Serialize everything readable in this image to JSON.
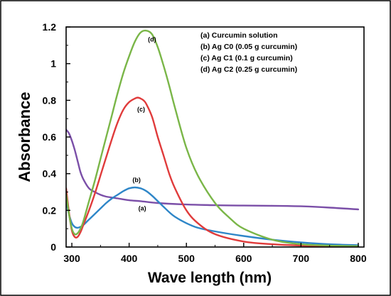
{
  "chart_data": {
    "type": "line",
    "xlabel": "Wave length (nm)",
    "ylabel": "Absorbance",
    "xlim": [
      290,
      810
    ],
    "ylim": [
      0,
      1.2
    ],
    "xticks": [
      300,
      400,
      500,
      600,
      700,
      800
    ],
    "yticks": [
      0,
      0.2,
      0.4,
      0.6,
      0.8,
      1,
      1.2
    ],
    "xtick_labels": [
      "300",
      "400",
      "500",
      "600",
      "700",
      "800"
    ],
    "ytick_labels": [
      "0",
      "0.2",
      "0.4",
      "0.6",
      "0.8",
      "1",
      "1.2"
    ],
    "grid": false,
    "legend_position": "top-right",
    "legend": [
      "(a) Curcumin solution",
      "(b) Ag C0 (0.05 g curcumin)",
      "(c) Ag C1 (0.1 g curcumin)",
      "(d) Ag C2 (0.25 g curcumin)"
    ],
    "series": [
      {
        "label": "(a)",
        "color": "#7b4fa8",
        "label_at": [
          423,
          0.2
        ],
        "x": [
          290,
          295,
          300,
          305,
          310,
          315,
          320,
          330,
          340,
          350,
          360,
          380,
          400,
          420,
          450,
          500,
          550,
          600,
          650,
          700,
          750,
          800
        ],
        "y": [
          0.64,
          0.62,
          0.58,
          0.53,
          0.47,
          0.41,
          0.37,
          0.32,
          0.3,
          0.285,
          0.275,
          0.265,
          0.255,
          0.25,
          0.24,
          0.232,
          0.228,
          0.226,
          0.225,
          0.222,
          0.215,
          0.205
        ]
      },
      {
        "label": "(b)",
        "color": "#2e86c8",
        "label_at": [
          413,
          0.355
        ],
        "x": [
          290,
          295,
          300,
          305,
          310,
          315,
          320,
          330,
          340,
          350,
          360,
          370,
          380,
          390,
          400,
          410,
          420,
          430,
          440,
          450,
          460,
          470,
          480,
          500,
          520,
          550,
          600,
          650,
          700,
          750,
          800
        ],
        "y": [
          0.25,
          0.18,
          0.13,
          0.11,
          0.105,
          0.11,
          0.12,
          0.15,
          0.18,
          0.21,
          0.24,
          0.265,
          0.285,
          0.305,
          0.32,
          0.325,
          0.32,
          0.305,
          0.28,
          0.25,
          0.22,
          0.19,
          0.165,
          0.13,
          0.105,
          0.085,
          0.06,
          0.04,
          0.025,
          0.015,
          0.01
        ]
      },
      {
        "label": "(c)",
        "color": "#e03b3b",
        "label_at": [
          421,
          0.74
        ],
        "x": [
          290,
          295,
          300,
          305,
          310,
          315,
          320,
          330,
          340,
          350,
          360,
          370,
          380,
          390,
          400,
          410,
          415,
          420,
          425,
          430,
          440,
          450,
          460,
          470,
          480,
          500,
          520,
          550,
          600,
          650,
          700,
          750,
          800
        ],
        "y": [
          0.32,
          0.19,
          0.09,
          0.055,
          0.055,
          0.08,
          0.12,
          0.2,
          0.29,
          0.39,
          0.49,
          0.59,
          0.68,
          0.75,
          0.79,
          0.81,
          0.815,
          0.81,
          0.8,
          0.78,
          0.71,
          0.6,
          0.5,
          0.4,
          0.32,
          0.2,
          0.13,
          0.07,
          0.03,
          0.015,
          0.008,
          0.005,
          0.003
        ]
      },
      {
        "label": "(d)",
        "color": "#7ab648",
        "label_at": [
          440,
          1.12
        ],
        "x": [
          290,
          295,
          300,
          305,
          310,
          315,
          320,
          330,
          340,
          350,
          360,
          370,
          380,
          390,
          400,
          410,
          420,
          430,
          440,
          450,
          460,
          470,
          480,
          500,
          520,
          550,
          575,
          600,
          650,
          700,
          750,
          800
        ],
        "y": [
          0.29,
          0.18,
          0.1,
          0.07,
          0.075,
          0.1,
          0.14,
          0.25,
          0.36,
          0.48,
          0.6,
          0.72,
          0.84,
          0.95,
          1.04,
          1.12,
          1.17,
          1.18,
          1.16,
          1.09,
          0.99,
          0.88,
          0.76,
          0.54,
          0.39,
          0.24,
          0.16,
          0.1,
          0.04,
          0.015,
          0.008,
          0.005
        ]
      }
    ]
  }
}
